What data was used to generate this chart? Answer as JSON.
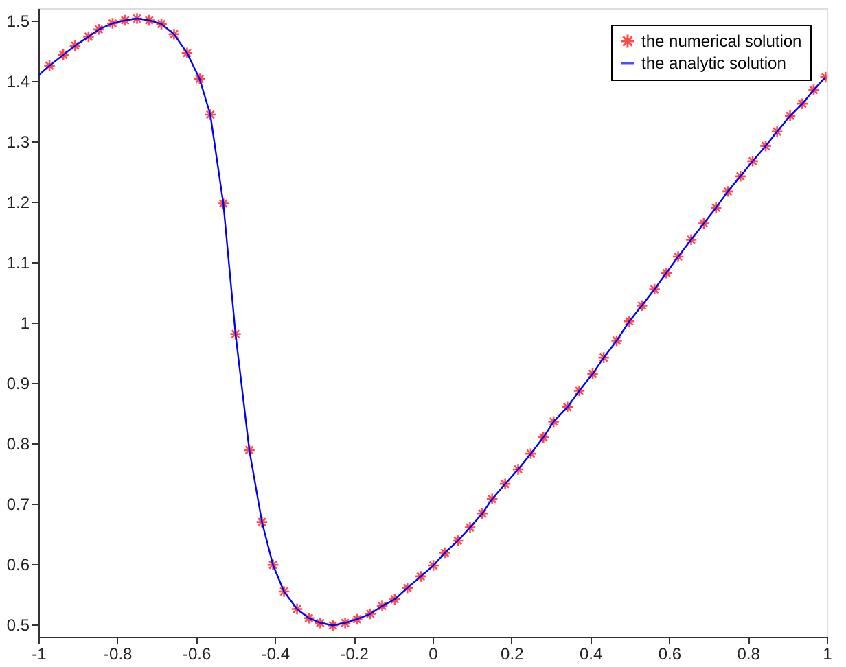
{
  "chart_data": {
    "type": "scatter",
    "xlim": [
      -1,
      1
    ],
    "ylim": [
      0.48,
      1.52
    ],
    "xticks": [
      -1,
      -0.8,
      -0.6,
      -0.4,
      -0.2,
      0,
      0.2,
      0.4,
      0.6,
      0.8,
      1
    ],
    "yticks": [
      0.5,
      0.6,
      0.7,
      0.8,
      0.9,
      1,
      1.1,
      1.2,
      1.3,
      1.4,
      1.5
    ],
    "grid": false,
    "legend": "top right",
    "series": [
      {
        "name": "the numerical solution",
        "marker": "cross",
        "color": "#ff0000",
        "x": [
          -0.972,
          -0.937,
          -0.907,
          -0.873,
          -0.847,
          -0.812,
          -0.78,
          -0.75,
          -0.719,
          -0.688,
          -0.656,
          -0.623,
          -0.591,
          -0.564,
          -0.531,
          -0.5,
          -0.465,
          -0.433,
          -0.405,
          -0.377,
          -0.344,
          -0.314,
          -0.285,
          -0.253,
          -0.222,
          -0.192,
          -0.158,
          -0.128,
          -0.096,
          -0.064,
          -0.03,
          0.002,
          0.031,
          0.064,
          0.095,
          0.126,
          0.151,
          0.184,
          0.217,
          0.249,
          0.281,
          0.307,
          0.342,
          0.372,
          0.406,
          0.434,
          0.467,
          0.499,
          0.531,
          0.563,
          0.593,
          0.623,
          0.656,
          0.688,
          0.719,
          0.749,
          0.781,
          0.812,
          0.845,
          0.874,
          0.907,
          0.938,
          0.967,
          0.997
        ],
        "values": [
          1.425,
          1.443,
          1.458,
          1.473,
          1.485,
          1.495,
          1.5,
          1.503,
          1.5,
          1.494,
          1.477,
          1.446,
          1.403,
          1.344,
          1.197,
          0.981,
          0.789,
          0.67,
          0.599,
          0.555,
          0.526,
          0.511,
          0.503,
          0.499,
          0.503,
          0.509,
          0.518,
          0.531,
          0.542,
          0.561,
          0.58,
          0.598,
          0.619,
          0.639,
          0.661,
          0.684,
          0.708,
          0.733,
          0.757,
          0.783,
          0.81,
          0.836,
          0.86,
          0.887,
          0.915,
          0.942,
          0.97,
          1.002,
          1.028,
          1.055,
          1.082,
          1.109,
          1.137,
          1.164,
          1.19,
          1.217,
          1.242,
          1.267,
          1.292,
          1.316,
          1.342,
          1.362,
          1.385,
          1.406
        ]
      },
      {
        "name": "the analytic solution",
        "type": "line",
        "marker": "none",
        "line_style": "solid",
        "color": "#0000ff",
        "x": [
          -1,
          -0.972,
          -0.937,
          -0.907,
          -0.873,
          -0.847,
          -0.812,
          -0.78,
          -0.75,
          -0.719,
          -0.688,
          -0.656,
          -0.623,
          -0.591,
          -0.564,
          -0.531,
          -0.5,
          -0.465,
          -0.433,
          -0.405,
          -0.377,
          -0.344,
          -0.314,
          -0.285,
          -0.253,
          -0.222,
          -0.192,
          -0.158,
          -0.128,
          -0.096,
          -0.064,
          -0.03,
          0.002,
          0.031,
          0.064,
          0.095,
          0.126,
          0.151,
          0.184,
          0.217,
          0.249,
          0.281,
          0.307,
          0.342,
          0.372,
          0.406,
          0.434,
          0.467,
          0.499,
          0.531,
          0.563,
          0.593,
          0.623,
          0.656,
          0.688,
          0.719,
          0.749,
          0.781,
          0.812,
          0.845,
          0.874,
          0.907,
          0.938,
          0.967,
          0.997
        ],
        "values": [
          1.409,
          1.425,
          1.443,
          1.458,
          1.473,
          1.485,
          1.495,
          1.5,
          1.503,
          1.5,
          1.494,
          1.477,
          1.446,
          1.403,
          1.344,
          1.197,
          0.981,
          0.789,
          0.67,
          0.599,
          0.555,
          0.526,
          0.511,
          0.503,
          0.499,
          0.503,
          0.509,
          0.518,
          0.531,
          0.542,
          0.561,
          0.58,
          0.598,
          0.619,
          0.639,
          0.661,
          0.684,
          0.708,
          0.733,
          0.757,
          0.783,
          0.81,
          0.836,
          0.86,
          0.887,
          0.915,
          0.942,
          0.97,
          1.002,
          1.028,
          1.055,
          1.082,
          1.109,
          1.137,
          1.164,
          1.19,
          1.217,
          1.242,
          1.267,
          1.292,
          1.316,
          1.342,
          1.362,
          1.385,
          1.406
        ]
      }
    ]
  }
}
